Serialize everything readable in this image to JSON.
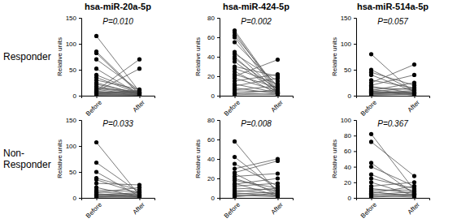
{
  "row_labels": [
    "Responder",
    "Non-Responder"
  ],
  "chart_data": [
    {
      "type": "line",
      "title": "hsa-miR-20a-5p",
      "annotations": [
        "P=0.010"
      ],
      "ylabel": "Relative units",
      "categories": [
        "Before",
        "After"
      ],
      "ylim": [
        0,
        150
      ],
      "yticks": [
        0,
        50,
        100,
        150
      ],
      "color": "#000000",
      "marker": "circle",
      "series": [
        {
          "values": [
            115,
            8
          ]
        },
        {
          "values": [
            85,
            5
          ]
        },
        {
          "values": [
            82,
            3
          ]
        },
        {
          "values": [
            70,
            10
          ]
        },
        {
          "values": [
            52,
            2
          ]
        },
        {
          "values": [
            40,
            6
          ]
        },
        {
          "values": [
            35,
            4
          ]
        },
        {
          "values": [
            30,
            12
          ]
        },
        {
          "values": [
            25,
            2
          ]
        },
        {
          "values": [
            22,
            5
          ]
        },
        {
          "values": [
            18,
            3
          ]
        },
        {
          "values": [
            15,
            8
          ]
        },
        {
          "values": [
            12,
            2
          ]
        },
        {
          "values": [
            10,
            70
          ]
        },
        {
          "values": [
            8,
            52
          ]
        },
        {
          "values": [
            6,
            4
          ]
        },
        {
          "values": [
            5,
            10
          ]
        },
        {
          "values": [
            4,
            2
          ]
        },
        {
          "values": [
            3,
            6
          ]
        },
        {
          "values": [
            2,
            1
          ]
        },
        {
          "values": [
            1,
            3
          ]
        },
        {
          "values": [
            14,
            5
          ]
        },
        {
          "values": [
            9,
            1
          ]
        },
        {
          "values": [
            7,
            7
          ]
        },
        {
          "values": [
            3,
            1
          ]
        }
      ]
    },
    {
      "type": "line",
      "title": "hsa-miR-424-5p",
      "annotations": [
        "P=0.002"
      ],
      "ylabel": "Relative units",
      "categories": [
        "Before",
        "After"
      ],
      "ylim": [
        0,
        80
      ],
      "yticks": [
        0,
        20,
        40,
        60,
        80
      ],
      "color": "#000000",
      "marker": "circle",
      "series": [
        {
          "values": [
            67,
            5
          ]
        },
        {
          "values": [
            65,
            3
          ]
        },
        {
          "values": [
            62,
            8
          ]
        },
        {
          "values": [
            60,
            2
          ]
        },
        {
          "values": [
            55,
            10
          ]
        },
        {
          "values": [
            45,
            4
          ]
        },
        {
          "values": [
            43,
            15
          ]
        },
        {
          "values": [
            40,
            2
          ]
        },
        {
          "values": [
            38,
            6
          ]
        },
        {
          "values": [
            35,
            3
          ]
        },
        {
          "values": [
            30,
            20
          ]
        },
        {
          "values": [
            28,
            12
          ]
        },
        {
          "values": [
            25,
            2
          ]
        },
        {
          "values": [
            22,
            8
          ]
        },
        {
          "values": [
            20,
            37
          ]
        },
        {
          "values": [
            18,
            5
          ]
        },
        {
          "values": [
            15,
            22
          ]
        },
        {
          "values": [
            12,
            3
          ]
        },
        {
          "values": [
            10,
            18
          ]
        },
        {
          "values": [
            8,
            2
          ]
        },
        {
          "values": [
            6,
            10
          ]
        },
        {
          "values": [
            5,
            4
          ]
        },
        {
          "values": [
            3,
            1
          ]
        },
        {
          "values": [
            2,
            6
          ]
        },
        {
          "values": [
            1,
            2
          ]
        }
      ]
    },
    {
      "type": "line",
      "title": "hsa-miR-514a-5p",
      "annotations": [
        "P=0.057"
      ],
      "ylabel": "Relative units",
      "categories": [
        "Before",
        "After"
      ],
      "ylim": [
        0,
        150
      ],
      "yticks": [
        0,
        50,
        100,
        150
      ],
      "color": "#000000",
      "marker": "circle",
      "series": [
        {
          "values": [
            80,
            5
          ]
        },
        {
          "values": [
            50,
            10
          ]
        },
        {
          "values": [
            45,
            20
          ]
        },
        {
          "values": [
            40,
            8
          ]
        },
        {
          "values": [
            30,
            15
          ]
        },
        {
          "values": [
            25,
            60
          ]
        },
        {
          "values": [
            20,
            40
          ]
        },
        {
          "values": [
            18,
            5
          ]
        },
        {
          "values": [
            15,
            12
          ]
        },
        {
          "values": [
            12,
            3
          ]
        },
        {
          "values": [
            10,
            25
          ]
        },
        {
          "values": [
            8,
            15
          ]
        },
        {
          "values": [
            6,
            5
          ]
        },
        {
          "values": [
            5,
            10
          ]
        },
        {
          "values": [
            4,
            2
          ]
        },
        {
          "values": [
            3,
            8
          ]
        },
        {
          "values": [
            2,
            4
          ]
        },
        {
          "values": [
            1,
            3
          ]
        },
        {
          "values": [
            7,
            6
          ]
        },
        {
          "values": [
            9,
            1
          ]
        }
      ]
    },
    {
      "type": "line",
      "annotations": [
        "P=0.033"
      ],
      "ylabel": "Relative units",
      "categories": [
        "Before",
        "After"
      ],
      "ylim": [
        0,
        150
      ],
      "yticks": [
        0,
        50,
        100,
        150
      ],
      "color": "#000000",
      "marker": "circle",
      "series": [
        {
          "values": [
            107,
            5
          ]
        },
        {
          "values": [
            68,
            10
          ]
        },
        {
          "values": [
            50,
            3
          ]
        },
        {
          "values": [
            38,
            15
          ]
        },
        {
          "values": [
            35,
            8
          ]
        },
        {
          "values": [
            28,
            25
          ]
        },
        {
          "values": [
            20,
            2
          ]
        },
        {
          "values": [
            15,
            12
          ]
        },
        {
          "values": [
            12,
            6
          ]
        },
        {
          "values": [
            10,
            20
          ]
        },
        {
          "values": [
            8,
            3
          ]
        },
        {
          "values": [
            6,
            10
          ]
        },
        {
          "values": [
            5,
            2
          ]
        },
        {
          "values": [
            4,
            8
          ]
        },
        {
          "values": [
            3,
            1
          ]
        },
        {
          "values": [
            2,
            5
          ]
        },
        {
          "values": [
            1,
            2
          ]
        },
        {
          "values": [
            7,
            4
          ]
        }
      ]
    },
    {
      "type": "line",
      "annotations": [
        "P=0.008"
      ],
      "ylabel": "Relative units",
      "categories": [
        "Before",
        "After"
      ],
      "ylim": [
        0,
        80
      ],
      "yticks": [
        0,
        20,
        40,
        60,
        80
      ],
      "color": "#000000",
      "marker": "circle",
      "series": [
        {
          "values": [
            58,
            5
          ]
        },
        {
          "values": [
            42,
            8
          ]
        },
        {
          "values": [
            35,
            12
          ]
        },
        {
          "values": [
            30,
            40
          ]
        },
        {
          "values": [
            26,
            38
          ]
        },
        {
          "values": [
            25,
            3
          ]
        },
        {
          "values": [
            22,
            25
          ]
        },
        {
          "values": [
            20,
            6
          ]
        },
        {
          "values": [
            18,
            10
          ]
        },
        {
          "values": [
            15,
            2
          ]
        },
        {
          "values": [
            12,
            15
          ]
        },
        {
          "values": [
            10,
            8
          ]
        },
        {
          "values": [
            8,
            4
          ]
        },
        {
          "values": [
            6,
            10
          ]
        },
        {
          "values": [
            5,
            2
          ]
        },
        {
          "values": [
            4,
            6
          ]
        },
        {
          "values": [
            3,
            1
          ]
        },
        {
          "values": [
            2,
            3
          ]
        },
        {
          "values": [
            14,
            20
          ]
        },
        {
          "values": [
            1,
            5
          ]
        }
      ]
    },
    {
      "type": "line",
      "annotations": [
        "P=0.367"
      ],
      "ylabel": "Relative units",
      "categories": [
        "Before",
        "After"
      ],
      "ylim": [
        0,
        100
      ],
      "yticks": [
        0,
        20,
        40,
        60,
        80,
        100
      ],
      "color": "#000000",
      "marker": "circle",
      "series": [
        {
          "values": [
            82,
            10
          ]
        },
        {
          "values": [
            72,
            28
          ]
        },
        {
          "values": [
            45,
            5
          ]
        },
        {
          "values": [
            40,
            15
          ]
        },
        {
          "values": [
            30,
            8
          ]
        },
        {
          "values": [
            25,
            12
          ]
        },
        {
          "values": [
            20,
            3
          ]
        },
        {
          "values": [
            15,
            20
          ]
        },
        {
          "values": [
            12,
            6
          ]
        },
        {
          "values": [
            10,
            10
          ]
        },
        {
          "values": [
            8,
            2
          ]
        },
        {
          "values": [
            6,
            15
          ]
        },
        {
          "values": [
            5,
            4
          ]
        },
        {
          "values": [
            4,
            8
          ]
        },
        {
          "values": [
            3,
            1
          ]
        },
        {
          "values": [
            2,
            5
          ]
        },
        {
          "values": [
            1,
            3
          ]
        }
      ]
    }
  ]
}
